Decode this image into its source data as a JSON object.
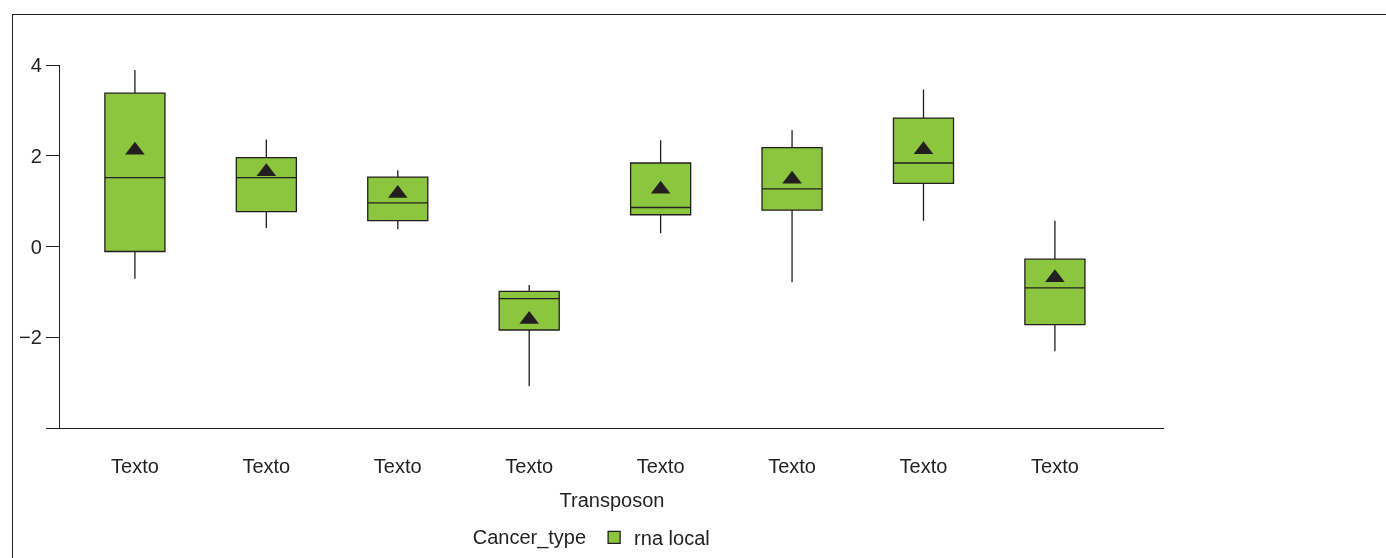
{
  "chart_data": {
    "type": "box",
    "xlabel": "Transposon",
    "legend_title": "Cancer_type",
    "categories": [
      "Texto",
      "Texto",
      "Texto",
      "Texto",
      "Texto",
      "Texto",
      "Texto",
      "Texto"
    ],
    "series": [
      {
        "name": "rna local",
        "color": "#8cc63f",
        "boxes": [
          {
            "low": -0.71,
            "q1": -0.11,
            "median": 1.52,
            "q3": 3.38,
            "high": 3.89,
            "mean": 2.12
          },
          {
            "low": 0.41,
            "q1": 0.77,
            "median": 1.52,
            "q3": 1.96,
            "high": 2.36,
            "mean": 1.65
          },
          {
            "low": 0.38,
            "q1": 0.57,
            "median": 0.96,
            "q3": 1.53,
            "high": 1.68,
            "mean": 1.17
          },
          {
            "low": -3.08,
            "q1": -1.84,
            "median": -1.15,
            "q3": -0.99,
            "high": -0.85,
            "mean": -1.61
          },
          {
            "low": 0.29,
            "q1": 0.7,
            "median": 0.86,
            "q3": 1.84,
            "high": 2.34,
            "mean": 1.26
          },
          {
            "low": -0.79,
            "q1": 0.8,
            "median": 1.27,
            "q3": 2.18,
            "high": 2.56,
            "mean": 1.48
          },
          {
            "low": 0.57,
            "q1": 1.39,
            "median": 1.84,
            "q3": 2.83,
            "high": 3.46,
            "mean": 2.13
          },
          {
            "low": -2.31,
            "q1": -1.72,
            "median": -0.91,
            "q3": -0.28,
            "high": 0.57,
            "mean": -0.69
          }
        ]
      }
    ],
    "ylim": [
      -4,
      4
    ],
    "yticks": [
      {
        "value": -4,
        "label": null
      },
      -2,
      0,
      2,
      4
    ],
    "marker": "triangle",
    "legend": "bottom"
  }
}
